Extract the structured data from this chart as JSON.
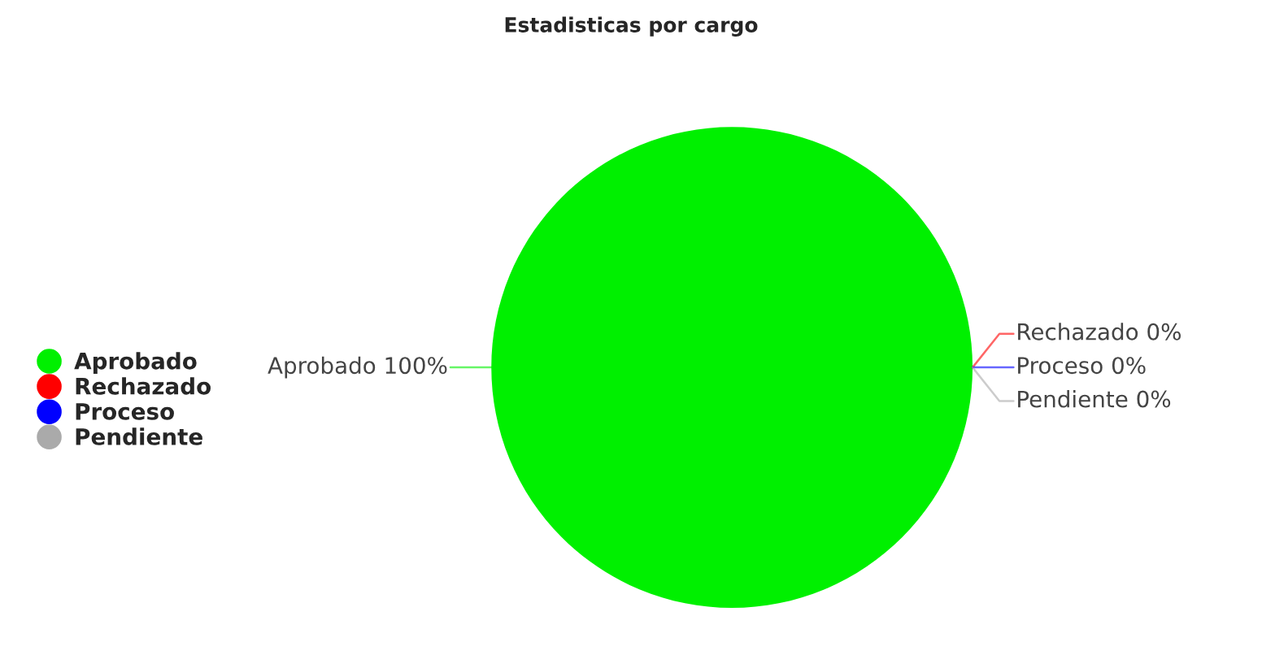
{
  "chart_data": {
    "type": "pie",
    "title": "Estadisticas por cargo",
    "categories": [
      "Aprobado",
      "Rechazado",
      "Proceso",
      "Pendiente"
    ],
    "values": [
      100,
      0,
      0,
      0
    ],
    "value_labels": [
      "100%",
      "0%",
      "0%",
      "0%"
    ],
    "colors": [
      "#00f000",
      "#ff0000",
      "#0000ff",
      "#aaaaaa"
    ],
    "legend": "left"
  }
}
